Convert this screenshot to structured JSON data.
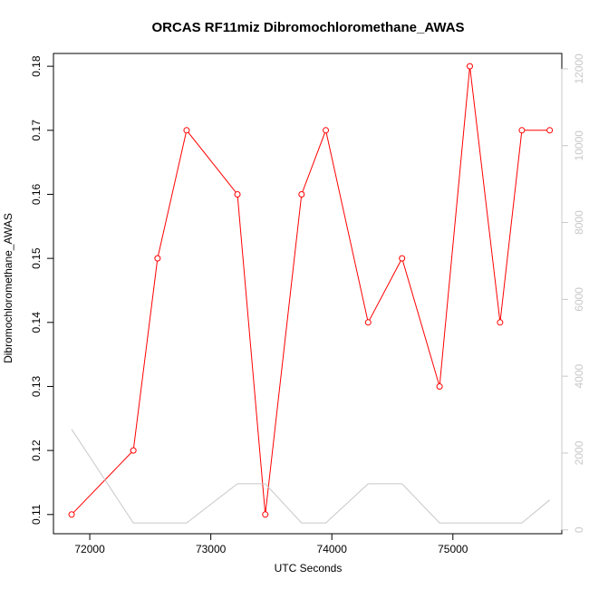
{
  "chart_data": {
    "type": "line",
    "title": "ORCAS RF11miz Dibromochloromethane_AWAS",
    "xlabel": "UTC Seconds",
    "ylabel": "Dibromochloromethane_AWAS",
    "xlim": [
      71700,
      75900
    ],
    "ylim": [
      0.107,
      0.182
    ],
    "y2lim": [
      -100,
      12400
    ],
    "x_ticks": [
      72000,
      73000,
      74000,
      75000
    ],
    "x_tick_labels": [
      "72000",
      "73000",
      "74000",
      "75000"
    ],
    "y_ticks": [
      0.11,
      0.12,
      0.13,
      0.14,
      0.15,
      0.16,
      0.17,
      0.18
    ],
    "y_tick_labels": [
      "0.11",
      "0.12",
      "0.13",
      "0.14",
      "0.15",
      "0.16",
      "0.17",
      "0.18"
    ],
    "y2_ticks": [
      0,
      2000,
      4000,
      6000,
      8000,
      10000,
      12000
    ],
    "y2_tick_labels": [
      "0",
      "2000",
      "4000",
      "6000",
      "8000",
      "10000",
      "12000"
    ],
    "grid": false,
    "series": [
      {
        "axis": "left",
        "color": "#ff0000",
        "marker": "open-circle",
        "x": [
          71850,
          72360,
          72560,
          72800,
          73220,
          73450,
          73750,
          73950,
          74300,
          74580,
          74890,
          75140,
          75390,
          75570,
          75800
        ],
        "y": [
          0.11,
          0.12,
          0.15,
          0.17,
          0.16,
          0.11,
          0.16,
          0.17,
          0.14,
          0.15,
          0.13,
          0.18,
          0.14,
          0.17,
          0.17
        ]
      },
      {
        "axis": "right",
        "color": "#c8c8c8",
        "marker": "none",
        "x": [
          71850,
          72360,
          72560,
          72800,
          73220,
          73450,
          73750,
          73950,
          74300,
          74580,
          74890,
          75140,
          75390,
          75570,
          75800
        ],
        "y": [
          2620,
          180,
          180,
          180,
          1200,
          1200,
          180,
          180,
          1200,
          1200,
          180,
          180,
          180,
          180,
          780
        ]
      }
    ]
  }
}
